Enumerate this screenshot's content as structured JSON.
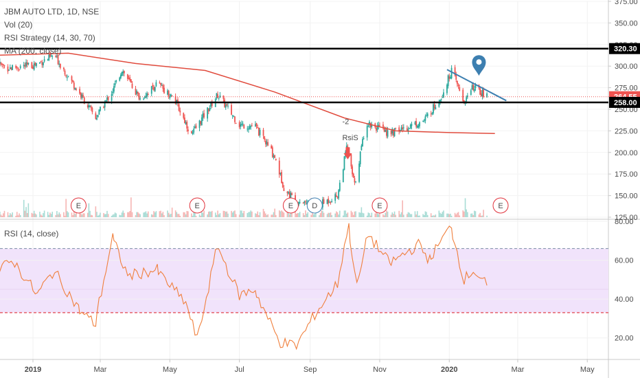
{
  "header": {
    "title": "JBM AUTO LTD, 1D, NSE",
    "indicators": [
      "Vol (20)",
      "RSI Strategy (14, 30, 70)",
      "MA (200, close)"
    ]
  },
  "rsi_panel": {
    "title": "RSI (14, close)"
  },
  "colors": {
    "up": "#26a69a",
    "down": "#ef5350",
    "ma": "#e04a3c",
    "rsi_line": "#f07f3c",
    "rsi_band": "#f1e3fb",
    "trendline": "#3d7fb0",
    "marker": "#3d7fb0",
    "level_line": "#000000",
    "price_badge": "#ef5350",
    "level_badge": "#000000"
  },
  "chart_data": [
    {
      "type": "candlestick",
      "title": "JBM AUTO LTD, 1D, NSE",
      "ylim": [
        125,
        375
      ],
      "y_ticks": [
        125,
        150,
        175,
        200,
        225,
        250,
        275,
        300,
        325,
        350,
        375
      ],
      "x_ticks": [
        "2019",
        "Mar",
        "May",
        "Jul",
        "Sep",
        "Nov",
        "2020",
        "Mar",
        "May"
      ],
      "price_path": [
        {
          "date": "2018-11-15",
          "price": 312
        },
        {
          "date": "2018-12-10",
          "price": 298
        },
        {
          "date": "2019-01-01",
          "price": 301
        },
        {
          "date": "2019-01-20",
          "price": 312
        },
        {
          "date": "2019-02-10",
          "price": 270
        },
        {
          "date": "2019-02-25",
          "price": 240
        },
        {
          "date": "2019-03-12",
          "price": 272
        },
        {
          "date": "2019-03-20",
          "price": 296
        },
        {
          "date": "2019-04-05",
          "price": 262
        },
        {
          "date": "2019-04-20",
          "price": 280
        },
        {
          "date": "2019-05-05",
          "price": 262
        },
        {
          "date": "2019-05-20",
          "price": 220
        },
        {
          "date": "2019-06-01",
          "price": 245
        },
        {
          "date": "2019-06-12",
          "price": 267
        },
        {
          "date": "2019-07-01",
          "price": 232
        },
        {
          "date": "2019-07-15",
          "price": 230
        },
        {
          "date": "2019-08-01",
          "price": 195
        },
        {
          "date": "2019-08-10",
          "price": 155
        },
        {
          "date": "2019-08-20",
          "price": 145
        },
        {
          "date": "2019-09-10",
          "price": 140
        },
        {
          "date": "2019-09-25",
          "price": 150
        },
        {
          "date": "2019-10-03",
          "price": 205
        },
        {
          "date": "2019-10-10",
          "price": 162
        },
        {
          "date": "2019-10-20",
          "price": 235
        },
        {
          "date": "2019-11-10",
          "price": 222
        },
        {
          "date": "2019-12-10",
          "price": 237
        },
        {
          "date": "2019-12-25",
          "price": 265
        },
        {
          "date": "2020-01-03",
          "price": 295
        },
        {
          "date": "2020-01-14",
          "price": 258
        },
        {
          "date": "2020-01-22",
          "price": 276
        },
        {
          "date": "2020-02-03",
          "price": 264.55
        }
      ],
      "ma_200": [
        {
          "date": "2018-11-15",
          "price": 312
        },
        {
          "date": "2019-02-01",
          "price": 315
        },
        {
          "date": "2019-04-01",
          "price": 303
        },
        {
          "date": "2019-06-01",
          "price": 295
        },
        {
          "date": "2019-08-01",
          "price": 270
        },
        {
          "date": "2019-10-01",
          "price": 240
        },
        {
          "date": "2019-11-15",
          "price": 225
        },
        {
          "date": "2020-01-01",
          "price": 223
        },
        {
          "date": "2020-02-10",
          "price": 222
        }
      ],
      "trendline": [
        {
          "date": "2019-12-30",
          "price": 296
        },
        {
          "date": "2020-02-20",
          "price": 260
        }
      ],
      "horizontal_levels": [
        320.3,
        258
      ],
      "current_price": 264.55,
      "price_labels": [
        "320.30",
        "264.55",
        "258.00"
      ],
      "events": [
        {
          "label": "E",
          "date": "2019-02-10"
        },
        {
          "label": "E",
          "date": "2019-05-25"
        },
        {
          "label": "E",
          "date": "2019-08-15"
        },
        {
          "label": "D",
          "date": "2019-09-05"
        },
        {
          "label": "E",
          "date": "2019-11-01"
        },
        {
          "label": "E",
          "date": "2020-02-15"
        }
      ],
      "strategy_signal": {
        "date": "2019-10-04",
        "labels": [
          "-2",
          "RsiS"
        ]
      },
      "marker": {
        "date": "2020-01-27",
        "price": 300
      }
    },
    {
      "type": "line",
      "title": "RSI (14, close)",
      "ylim": [
        10,
        80
      ],
      "y_ticks": [
        20,
        40,
        60,
        80
      ],
      "band": [
        33,
        66
      ],
      "series": [
        {
          "points": [
            {
              "date": "2018-11-15",
              "rsi": 48
            },
            {
              "date": "2018-12-15",
              "rsi": 60
            },
            {
              "date": "2019-01-05",
              "rsi": 42
            },
            {
              "date": "2019-01-20",
              "rsi": 55
            },
            {
              "date": "2019-02-10",
              "rsi": 35
            },
            {
              "date": "2019-02-25",
              "rsi": 27
            },
            {
              "date": "2019-03-12",
              "rsi": 72
            },
            {
              "date": "2019-03-25",
              "rsi": 52
            },
            {
              "date": "2019-04-20",
              "rsi": 55
            },
            {
              "date": "2019-05-15",
              "rsi": 38
            },
            {
              "date": "2019-05-25",
              "rsi": 19
            },
            {
              "date": "2019-06-12",
              "rsi": 68
            },
            {
              "date": "2019-07-01",
              "rsi": 42
            },
            {
              "date": "2019-07-15",
              "rsi": 45
            },
            {
              "date": "2019-08-05",
              "rsi": 18
            },
            {
              "date": "2019-08-20",
              "rsi": 16
            },
            {
              "date": "2019-09-05",
              "rsi": 32
            },
            {
              "date": "2019-09-25",
              "rsi": 48
            },
            {
              "date": "2019-10-05",
              "rsi": 80
            },
            {
              "date": "2019-10-12",
              "rsi": 46
            },
            {
              "date": "2019-10-22",
              "rsi": 74
            },
            {
              "date": "2019-11-10",
              "rsi": 58
            },
            {
              "date": "2019-12-05",
              "rsi": 68
            },
            {
              "date": "2019-12-15",
              "rsi": 60
            },
            {
              "date": "2020-01-03",
              "rsi": 78
            },
            {
              "date": "2020-01-14",
              "rsi": 50
            },
            {
              "date": "2020-01-22",
              "rsi": 55
            },
            {
              "date": "2020-02-03",
              "rsi": 47
            }
          ]
        }
      ]
    }
  ]
}
